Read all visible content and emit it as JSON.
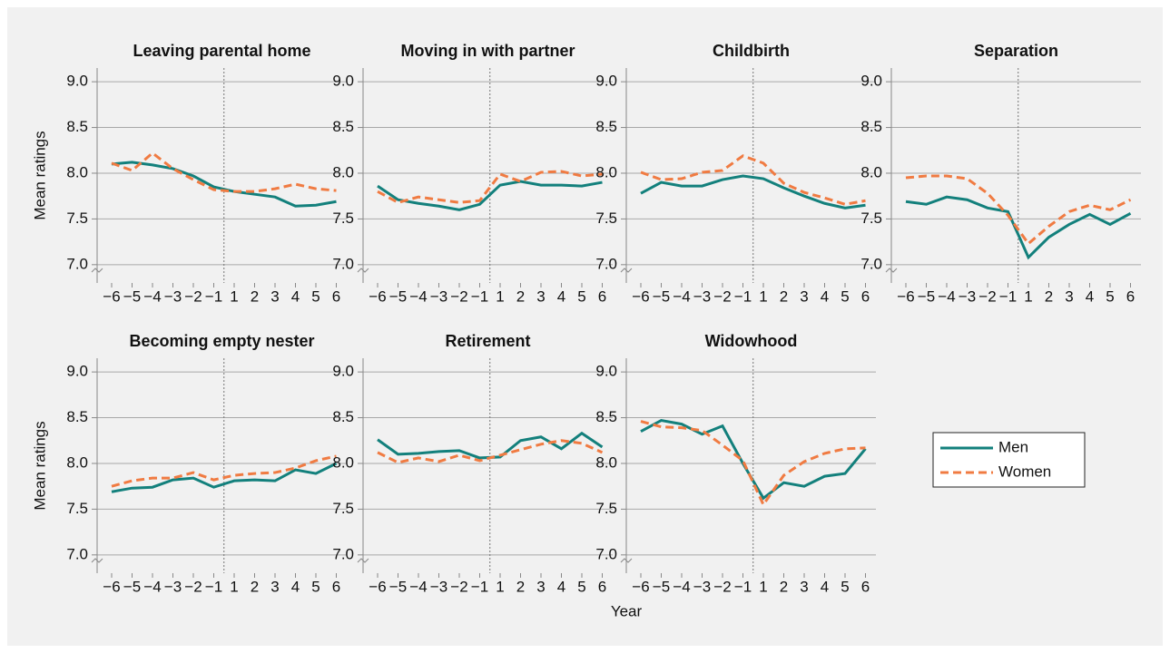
{
  "chart_data": [
    {
      "type": "line",
      "title": "Leaving parental home",
      "y_label": "Mean ratings",
      "categories": [
        "−6",
        "−5",
        "−4",
        "−3",
        "−2",
        "−1",
        "1",
        "2",
        "3",
        "4",
        "5",
        "6"
      ],
      "series": [
        {
          "name": "Men",
          "color": "#13807c",
          "style": "solid",
          "values": [
            8.1,
            8.12,
            8.09,
            8.05,
            7.97,
            7.85,
            7.8,
            7.77,
            7.74,
            7.64,
            7.65,
            7.69
          ]
        },
        {
          "name": "Women",
          "color": "#f07b42",
          "style": "dashed",
          "values": [
            8.11,
            8.03,
            8.22,
            8.05,
            7.93,
            7.82,
            7.8,
            7.8,
            7.83,
            7.88,
            7.83,
            7.81
          ]
        }
      ],
      "ylim": [
        6.8,
        9.15
      ],
      "yticks": [
        {
          "value": 7,
          "label": "7.0"
        },
        7.5,
        {
          "value": 8,
          "label": "8.0"
        },
        8.5,
        {
          "value": 9,
          "label": "9.0"
        }
      ],
      "grid": true
    },
    {
      "type": "line",
      "title": "Moving in with partner",
      "categories": [
        "−6",
        "−5",
        "−4",
        "−3",
        "−2",
        "−1",
        "1",
        "2",
        "3",
        "4",
        "5",
        "6"
      ],
      "series": [
        {
          "name": "Men",
          "color": "#13807c",
          "style": "solid",
          "values": [
            7.86,
            7.71,
            7.67,
            7.64,
            7.6,
            7.66,
            7.87,
            7.91,
            7.87,
            7.87,
            7.86,
            7.9
          ]
        },
        {
          "name": "Women",
          "color": "#f07b42",
          "style": "dashed",
          "values": [
            7.8,
            7.68,
            7.74,
            7.71,
            7.68,
            7.7,
            7.99,
            7.91,
            8.01,
            8.02,
            7.97,
            7.99
          ]
        }
      ],
      "ylim": [
        6.8,
        9.15
      ],
      "yticks": [
        {
          "value": 7,
          "label": "7.0"
        },
        7.5,
        {
          "value": 8,
          "label": "8.0"
        },
        8.5,
        {
          "value": 9,
          "label": "9.0"
        }
      ],
      "grid": true
    },
    {
      "type": "line",
      "title": "Childbirth",
      "categories": [
        "−6",
        "−5",
        "−4",
        "−3",
        "−2",
        "−1",
        "1",
        "2",
        "3",
        "4",
        "5",
        "6"
      ],
      "series": [
        {
          "name": "Men",
          "color": "#13807c",
          "style": "solid",
          "values": [
            7.78,
            7.9,
            7.86,
            7.86,
            7.93,
            7.97,
            7.94,
            7.84,
            7.75,
            7.67,
            7.62,
            7.65
          ]
        },
        {
          "name": "Women",
          "color": "#f07b42",
          "style": "dashed",
          "values": [
            8.01,
            7.93,
            7.94,
            8.01,
            8.03,
            8.19,
            8.11,
            7.89,
            7.79,
            7.73,
            7.66,
            7.7
          ]
        }
      ],
      "ylim": [
        6.8,
        9.15
      ],
      "yticks": [
        {
          "value": 7,
          "label": "7.0"
        },
        7.5,
        {
          "value": 8,
          "label": "8.0"
        },
        8.5,
        {
          "value": 9,
          "label": "9.0"
        }
      ],
      "grid": true
    },
    {
      "type": "line",
      "title": "Separation",
      "categories": [
        "−6",
        "−5",
        "−4",
        "−3",
        "−2",
        "−1",
        "1",
        "2",
        "3",
        "4",
        "5",
        "6"
      ],
      "series": [
        {
          "name": "Men",
          "color": "#13807c",
          "style": "solid",
          "values": [
            7.69,
            7.66,
            7.74,
            7.71,
            7.62,
            7.58,
            7.08,
            7.3,
            7.44,
            7.55,
            7.44,
            7.56
          ]
        },
        {
          "name": "Women",
          "color": "#f07b42",
          "style": "dashed",
          "values": [
            7.95,
            7.97,
            7.97,
            7.94,
            7.78,
            7.54,
            7.23,
            7.42,
            7.58,
            7.65,
            7.6,
            7.71
          ]
        }
      ],
      "ylim": [
        6.8,
        9.15
      ],
      "yticks": [
        {
          "value": 7,
          "label": "7.0"
        },
        7.5,
        {
          "value": 8,
          "label": "8.0"
        },
        8.5,
        {
          "value": 9,
          "label": "9.0"
        }
      ],
      "grid": true
    },
    {
      "type": "line",
      "title": "Becoming empty nester",
      "y_label": "Mean ratings",
      "categories": [
        "−6",
        "−5",
        "−4",
        "−3",
        "−2",
        "−1",
        "1",
        "2",
        "3",
        "4",
        "5",
        "6"
      ],
      "series": [
        {
          "name": "Men",
          "color": "#13807c",
          "style": "solid",
          "values": [
            7.69,
            7.73,
            7.74,
            7.82,
            7.84,
            7.74,
            7.81,
            7.82,
            7.81,
            7.93,
            7.89,
            8.0
          ]
        },
        {
          "name": "Women",
          "color": "#f07b42",
          "style": "dashed",
          "values": [
            7.75,
            7.81,
            7.84,
            7.84,
            7.9,
            7.82,
            7.87,
            7.89,
            7.9,
            7.95,
            8.03,
            8.08
          ]
        }
      ],
      "ylim": [
        6.8,
        9.15
      ],
      "yticks": [
        {
          "value": 7,
          "label": "7.0"
        },
        7.5,
        {
          "value": 8,
          "label": "8.0"
        },
        8.5,
        {
          "value": 9,
          "label": "9.0"
        }
      ],
      "grid": true
    },
    {
      "type": "line",
      "title": "Retirement",
      "categories": [
        "−6",
        "−5",
        "−4",
        "−3",
        "−2",
        "−1",
        "1",
        "2",
        "3",
        "4",
        "5",
        "6"
      ],
      "series": [
        {
          "name": "Men",
          "color": "#13807c",
          "style": "solid",
          "values": [
            8.26,
            8.1,
            8.11,
            8.13,
            8.14,
            8.06,
            8.07,
            8.25,
            8.29,
            8.16,
            8.33,
            8.18
          ]
        },
        {
          "name": "Women",
          "color": "#f07b42",
          "style": "dashed",
          "values": [
            8.12,
            8.01,
            8.06,
            8.02,
            8.09,
            8.03,
            8.09,
            8.15,
            8.21,
            8.25,
            8.22,
            8.12
          ]
        }
      ],
      "ylim": [
        6.8,
        9.15
      ],
      "yticks": [
        {
          "value": 7,
          "label": "7.0"
        },
        7.5,
        {
          "value": 8,
          "label": "8.0"
        },
        8.5,
        {
          "value": 9,
          "label": "9.0"
        }
      ],
      "grid": true
    },
    {
      "type": "line",
      "title": "Widowhood",
      "x_label": "Year",
      "categories": [
        "−6",
        "−5",
        "−4",
        "−3",
        "−2",
        "−1",
        "1",
        "2",
        "3",
        "4",
        "5",
        "6"
      ],
      "series": [
        {
          "name": "Men",
          "color": "#13807c",
          "style": "solid",
          "values": [
            8.35,
            8.47,
            8.43,
            8.32,
            8.41,
            8.0,
            7.62,
            7.79,
            7.75,
            7.86,
            7.89,
            8.16
          ]
        },
        {
          "name": "Women",
          "color": "#f07b42",
          "style": "dashed",
          "values": [
            8.46,
            8.4,
            8.39,
            8.36,
            8.2,
            8.03,
            7.55,
            7.87,
            8.02,
            8.11,
            8.16,
            8.17
          ]
        }
      ],
      "ylim": [
        6.8,
        9.15
      ],
      "yticks": [
        {
          "value": 7,
          "label": "7.0"
        },
        7.5,
        {
          "value": 8,
          "label": "8.0"
        },
        8.5,
        {
          "value": 9,
          "label": "9.0"
        }
      ],
      "grid": true
    }
  ]
}
